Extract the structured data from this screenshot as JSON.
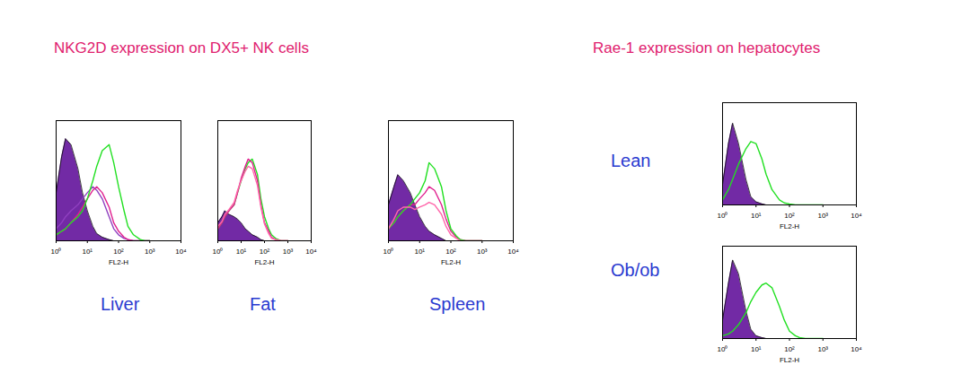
{
  "headings": [
    "NKG2D expression on DX5+ NK cells",
    "Rae-1 expression on hepatocytes"
  ],
  "chart_data": [
    {
      "type": "line",
      "title": "Liver",
      "x_label": "FL2-H",
      "log": "x",
      "tick_labels": "x",
      "xlim": [
        1,
        10000
      ],
      "xticks": [
        {
          "value": 1,
          "label": "10⁰"
        },
        {
          "value": 10,
          "label": "10¹"
        },
        {
          "value": 100,
          "label": "10²"
        },
        {
          "value": 1000,
          "label": "10³"
        },
        {
          "value": 10000,
          "label": "10⁴"
        }
      ],
      "ylim": [
        0,
        100
      ],
      "x": [
        1,
        1.5,
        2,
        3,
        5,
        7,
        10,
        15,
        20,
        30,
        50,
        70,
        100,
        150,
        200,
        300,
        500,
        700,
        1000
      ],
      "series": [
        {
          "type": "area",
          "color": "#6a1fa0",
          "values": [
            40,
            70,
            85,
            80,
            60,
            40,
            25,
            12,
            6,
            3,
            1,
            0,
            0,
            0,
            0,
            0,
            0,
            0,
            0
          ]
        },
        {
          "type": "line",
          "color": "#9040c0",
          "values": [
            10,
            15,
            20,
            25,
            30,
            35,
            40,
            45,
            42,
            35,
            20,
            10,
            5,
            2,
            1,
            0,
            0,
            0,
            0
          ]
        },
        {
          "type": "line",
          "color": "#e0208f",
          "values": [
            5,
            8,
            10,
            15,
            22,
            28,
            35,
            42,
            45,
            40,
            28,
            15,
            8,
            3,
            1,
            0,
            0,
            0,
            0
          ]
        },
        {
          "type": "line",
          "color": "#22e022",
          "values": [
            5,
            8,
            10,
            15,
            20,
            25,
            35,
            50,
            62,
            75,
            80,
            65,
            45,
            25,
            12,
            5,
            1,
            0,
            0
          ]
        }
      ]
    },
    {
      "type": "line",
      "title": "Fat",
      "x_label": "FL2-H",
      "log": "x",
      "tick_labels": "x",
      "xlim": [
        1,
        10000
      ],
      "xticks": [
        {
          "value": 1,
          "label": "10⁰"
        },
        {
          "value": 10,
          "label": "10¹"
        },
        {
          "value": 100,
          "label": "10²"
        },
        {
          "value": 1000,
          "label": "10³"
        },
        {
          "value": 10000,
          "label": "10⁴"
        }
      ],
      "ylim": [
        0,
        100
      ],
      "x": [
        1,
        1.5,
        2,
        3,
        5,
        7,
        10,
        15,
        20,
        30,
        50,
        70,
        100,
        150,
        200,
        300,
        500,
        700,
        1000
      ],
      "series": [
        {
          "type": "area",
          "color": "#6a1fa0",
          "values": [
            15,
            20,
            25,
            22,
            20,
            18,
            15,
            10,
            8,
            5,
            3,
            1,
            0,
            0,
            0,
            0,
            0,
            0,
            0
          ]
        },
        {
          "type": "line",
          "color": "#22e022",
          "values": [
            10,
            15,
            20,
            25,
            30,
            40,
            50,
            60,
            65,
            68,
            55,
            35,
            20,
            10,
            5,
            2,
            0,
            0,
            0
          ]
        },
        {
          "type": "line",
          "color": "#e0208f",
          "values": [
            10,
            15,
            20,
            25,
            30,
            40,
            52,
            62,
            68,
            65,
            50,
            30,
            15,
            8,
            3,
            1,
            0,
            0,
            0
          ]
        },
        {
          "type": "line",
          "color": "#ff66aa",
          "values": [
            12,
            16,
            22,
            26,
            32,
            42,
            50,
            58,
            62,
            60,
            46,
            28,
            14,
            6,
            2,
            1,
            0,
            0,
            0
          ]
        }
      ]
    },
    {
      "type": "line",
      "title": "Spleen",
      "x_label": "FL2-H",
      "log": "x",
      "tick_labels": "x",
      "xlim": [
        1,
        10000
      ],
      "xticks": [
        {
          "value": 1,
          "label": "10⁰"
        },
        {
          "value": 10,
          "label": "10¹"
        },
        {
          "value": 100,
          "label": "10²"
        },
        {
          "value": 1000,
          "label": "10³"
        },
        {
          "value": 10000,
          "label": "10⁴"
        }
      ],
      "ylim": [
        0,
        100
      ],
      "x": [
        1,
        1.5,
        2,
        3,
        5,
        7,
        10,
        15,
        20,
        30,
        50,
        70,
        100,
        150,
        200,
        300,
        500,
        700,
        1000
      ],
      "series": [
        {
          "type": "area",
          "color": "#6a1fa0",
          "values": [
            30,
            45,
            55,
            50,
            40,
            30,
            20,
            12,
            8,
            5,
            2,
            0,
            0,
            0,
            0,
            0,
            0,
            0,
            0
          ]
        },
        {
          "type": "line",
          "color": "#e0208f",
          "values": [
            10,
            15,
            20,
            25,
            30,
            30,
            35,
            40,
            45,
            42,
            30,
            18,
            8,
            3,
            1,
            0,
            0,
            0,
            0
          ]
        },
        {
          "type": "line",
          "color": "#22e022",
          "values": [
            10,
            15,
            20,
            25,
            30,
            35,
            40,
            50,
            65,
            60,
            45,
            25,
            10,
            4,
            1,
            0,
            0,
            0,
            0
          ]
        },
        {
          "type": "line",
          "color": "#ff66aa",
          "values": [
            10,
            18,
            25,
            28,
            28,
            26,
            28,
            30,
            32,
            30,
            22,
            12,
            5,
            2,
            0,
            0,
            0,
            0,
            0
          ]
        }
      ]
    },
    {
      "type": "line",
      "title": "Lean",
      "x_label": "FL2-H",
      "log": "x",
      "tick_labels": "x",
      "xlim": [
        1,
        10000
      ],
      "xticks": [
        {
          "value": 1,
          "label": "10⁰"
        },
        {
          "value": 10,
          "label": "10¹"
        },
        {
          "value": 100,
          "label": "10²"
        },
        {
          "value": 1000,
          "label": "10³"
        },
        {
          "value": 10000,
          "label": "10⁴"
        }
      ],
      "ylim": [
        0,
        100
      ],
      "x": [
        1,
        1.5,
        2,
        3,
        5,
        7,
        10,
        15,
        20,
        30,
        50,
        70,
        100,
        150,
        200,
        300,
        500,
        700,
        1000
      ],
      "series": [
        {
          "type": "area",
          "color": "#6a1fa0",
          "values": [
            20,
            60,
            80,
            60,
            25,
            8,
            3,
            1,
            0,
            0,
            0,
            0,
            0,
            0,
            0,
            0,
            0,
            0,
            0
          ]
        },
        {
          "type": "line",
          "color": "#22e022",
          "values": [
            5,
            15,
            25,
            40,
            55,
            62,
            60,
            45,
            30,
            15,
            5,
            2,
            1,
            0,
            0,
            0,
            0,
            0,
            0
          ]
        }
      ]
    },
    {
      "type": "line",
      "title": "Ob/ob",
      "x_label": "FL2-H",
      "log": "x",
      "tick_labels": "x",
      "xlim": [
        1,
        10000
      ],
      "xticks": [
        {
          "value": 1,
          "label": "10⁰"
        },
        {
          "value": 10,
          "label": "10¹"
        },
        {
          "value": 100,
          "label": "10²"
        },
        {
          "value": 1000,
          "label": "10³"
        },
        {
          "value": 10000,
          "label": "10⁴"
        }
      ],
      "ylim": [
        0,
        100
      ],
      "x": [
        1,
        1.5,
        2,
        3,
        5,
        7,
        10,
        15,
        20,
        30,
        50,
        70,
        100,
        150,
        200,
        300,
        500,
        700,
        1000
      ],
      "series": [
        {
          "type": "area",
          "color": "#6a1fa0",
          "values": [
            20,
            60,
            85,
            70,
            30,
            10,
            3,
            1,
            0,
            0,
            0,
            0,
            0,
            0,
            0,
            0,
            0,
            0,
            0
          ]
        },
        {
          "type": "line",
          "color": "#22e022",
          "values": [
            3,
            5,
            8,
            15,
            28,
            40,
            50,
            58,
            60,
            55,
            35,
            20,
            8,
            3,
            1,
            0,
            0,
            0,
            0
          ]
        }
      ]
    }
  ]
}
